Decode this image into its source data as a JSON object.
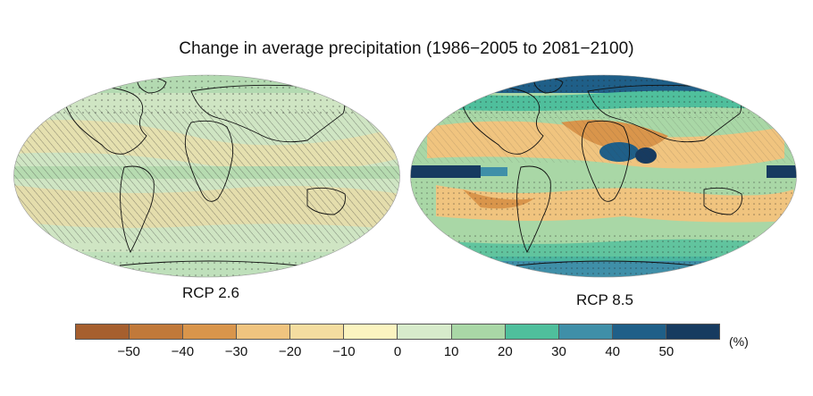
{
  "title": "Change in average precipitation (1986−2005 to 2081−2100)",
  "maps": [
    {
      "scenario": "RCP 2.6",
      "tone": "mostly light green (0 to +20%), pale yellow bands over subtropical oceans, hatching over most areas"
    },
    {
      "scenario": "RCP 8.5",
      "tone": "strong increases (dark blue) at high latitudes and equatorial Pacific, yellow/orange decreases in subtropics and Mediterranean, stippling widespread"
    }
  ],
  "colorbar": {
    "unit": "(%)",
    "colors": [
      "#a65f2e",
      "#c1793a",
      "#d9954b",
      "#f0c47f",
      "#f4dda0",
      "#fbf4c0",
      "#d7ebcb",
      "#a9d7a6",
      "#4fbf9c",
      "#3f8fa8",
      "#1f5f88",
      "#173b60"
    ],
    "ticks": [
      "−50",
      "−40",
      "−30",
      "−20",
      "−10",
      "0",
      "10",
      "20",
      "30",
      "40",
      "50"
    ]
  }
}
